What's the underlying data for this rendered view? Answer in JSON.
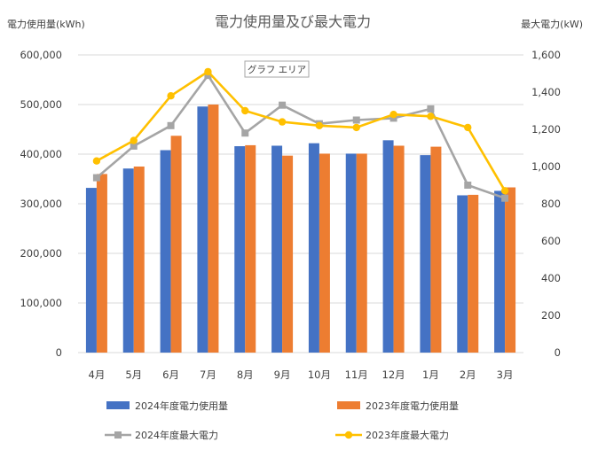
{
  "chart_data": {
    "type": "bar",
    "title": "電力使用量及び最大電力",
    "ylabel_left": "電力使用量(kWh)",
    "ylabel_right": "最大電力(kW)",
    "categories": [
      "4月",
      "5月",
      "6月",
      "7月",
      "8月",
      "9月",
      "10月",
      "11月",
      "12月",
      "1月",
      "2月",
      "3月"
    ],
    "y_left": {
      "lim": [
        0,
        600000
      ],
      "ticks": [
        "0",
        "100,000",
        "200,000",
        "300,000",
        "400,000",
        "500,000",
        "600,000"
      ]
    },
    "y_right": {
      "lim": [
        0,
        1600
      ],
      "ticks": [
        "0",
        "200",
        "400",
        "600",
        "800",
        "1,000",
        "1,200",
        "1,400",
        "1,600"
      ]
    },
    "grid": true,
    "legend_position": "bottom",
    "series": [
      {
        "name": "2024年度電力使用量",
        "type": "bar",
        "axis": "left",
        "color": "#4472C4",
        "values": [
          332000,
          371000,
          408000,
          496000,
          416000,
          417000,
          422000,
          401000,
          428000,
          398000,
          317000,
          326000
        ]
      },
      {
        "name": "2023年度電力使用量",
        "type": "bar",
        "axis": "left",
        "color": "#ED7D31",
        "values": [
          360000,
          375000,
          437000,
          500000,
          418000,
          397000,
          401000,
          401000,
          417000,
          415000,
          318000,
          333000
        ]
      },
      {
        "name": "2024年度最大電力",
        "type": "line",
        "axis": "right",
        "color": "#A5A5A5",
        "marker": "square",
        "values": [
          940,
          1110,
          1220,
          1490,
          1180,
          1330,
          1230,
          1250,
          1260,
          1310,
          900,
          830
        ]
      },
      {
        "name": "2023年度最大電力",
        "type": "line",
        "axis": "right",
        "color": "#FFC000",
        "marker": "circle",
        "values": [
          1030,
          1140,
          1380,
          1510,
          1300,
          1240,
          1220,
          1210,
          1280,
          1270,
          1210,
          870
        ]
      }
    ],
    "annotation": "グラフ エリア"
  }
}
